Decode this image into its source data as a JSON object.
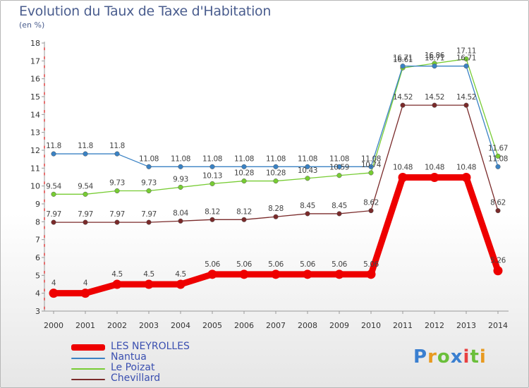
{
  "title": "Evolution du Taux de Taxe d'Habitation",
  "subtitle": "(en %)",
  "logo": "Proxiti",
  "chart_data": {
    "type": "line",
    "x": [
      "2000",
      "2001",
      "2002",
      "2003",
      "2004",
      "2005",
      "2006",
      "2007",
      "2008",
      "2009",
      "2010",
      "2011",
      "2012",
      "2013",
      "2014"
    ],
    "ylim": [
      3,
      18
    ],
    "yticks": [
      "3",
      "4",
      "5",
      "6",
      "7",
      "8",
      "9",
      "10",
      "11",
      "12",
      "13",
      "14",
      "15",
      "16",
      "17",
      "18"
    ],
    "grid": false,
    "legend_position": "bottom-left",
    "series": [
      {
        "name": "LES NEYROLLES",
        "color": "#ee0000",
        "values": [
          4,
          4,
          4.5,
          4.5,
          4.5,
          5.06,
          5.06,
          5.06,
          5.06,
          5.06,
          5.06,
          10.48,
          10.48,
          10.48,
          5.26
        ],
        "labels": [
          "4",
          "4",
          "4.5",
          "4.5",
          "4.5",
          "5.06",
          "5.06",
          "5.06",
          "5.06",
          "5.06",
          "5.06",
          "10.48",
          "10.48",
          "10.48",
          "5.26"
        ]
      },
      {
        "name": "Nantua",
        "color": "#3a82c4",
        "values": [
          11.8,
          11.8,
          11.8,
          11.08,
          11.08,
          11.08,
          11.08,
          11.08,
          11.08,
          11.08,
          11.08,
          16.71,
          16.71,
          16.71,
          11.08
        ],
        "labels": [
          "11.8",
          "11.8",
          "11.8",
          "11.08",
          "11.08",
          "11.08",
          "11.08",
          "11.08",
          "11.08",
          "11.08",
          "11.08",
          "16.71",
          "16.71",
          "16.71",
          "11.08"
        ]
      },
      {
        "name": "Le Poizat",
        "color": "#77cc33",
        "values": [
          9.54,
          9.54,
          9.73,
          9.73,
          9.93,
          10.13,
          10.28,
          10.28,
          10.43,
          10.59,
          10.74,
          16.61,
          16.86,
          17.11,
          11.67
        ],
        "labels": [
          "9.54",
          "9.54",
          "9.73",
          "9.73",
          "9.93",
          "10.13",
          "10.28",
          "10.28",
          "10.43",
          "10.59",
          "10.74",
          "16.61",
          "16.86",
          "17.11",
          "11.67"
        ]
      },
      {
        "name": "Chevillard",
        "color": "#7a2a2a",
        "values": [
          7.97,
          7.97,
          7.97,
          7.97,
          8.04,
          8.12,
          8.12,
          8.28,
          8.45,
          8.45,
          8.62,
          14.52,
          14.52,
          14.52,
          8.62
        ],
        "labels": [
          "7.97",
          "7.97",
          "7.97",
          "7.97",
          "8.04",
          "8.12",
          "8.12",
          "8.28",
          "8.45",
          "8.45",
          "8.62",
          "14.52",
          "14.52",
          "14.52",
          "8.62"
        ]
      }
    ]
  }
}
